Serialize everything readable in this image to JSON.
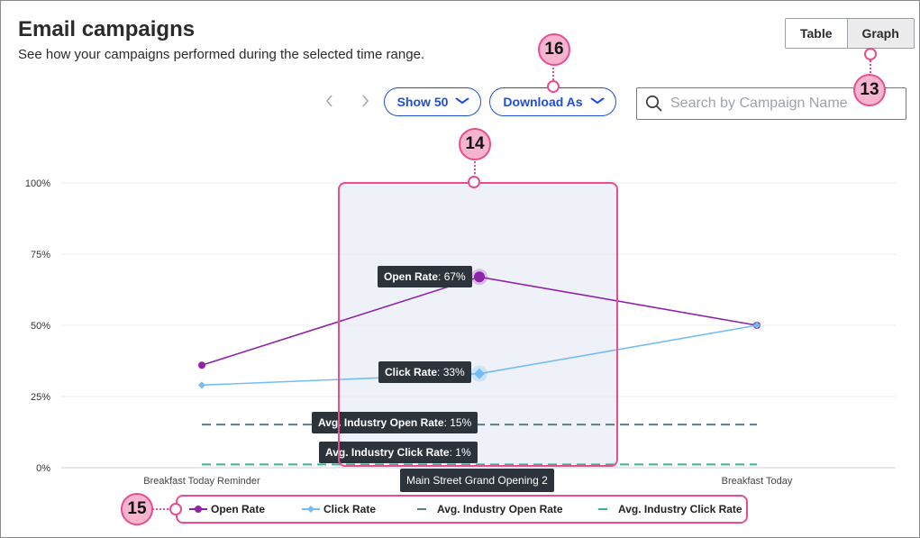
{
  "header": {
    "title": "Email campaigns",
    "subtitle": "See how your campaigns performed during the selected time range."
  },
  "view_toggle": {
    "table_label": "Table",
    "graph_label": "Graph",
    "selected": "Graph"
  },
  "toolbar": {
    "prev_icon": "chevron-left-icon",
    "next_icon": "chevron-right-icon",
    "show_label": "Show 50",
    "download_label": "Download As",
    "search_placeholder": "Search by Campaign Name",
    "search_value": ""
  },
  "chart_data": {
    "type": "line",
    "categories": [
      "Breakfast Today Reminder",
      "Main Street Grand Opening 2",
      "Breakfast Today"
    ],
    "yticks": [
      "100%",
      "75%",
      "50%",
      "25%",
      "0%"
    ],
    "ylim": [
      0,
      100
    ],
    "grid": true,
    "series": [
      {
        "name": "Open Rate",
        "values": [
          36,
          67,
          50
        ],
        "color": "#8e24aa",
        "marker": "circle"
      },
      {
        "name": "Click Rate",
        "values": [
          29,
          33,
          50
        ],
        "color": "#74bcf8",
        "marker": "diamond"
      }
    ],
    "reference_lines": [
      {
        "name": "Avg. Industry Open Rate",
        "value": 15,
        "color": "#5f7d86",
        "style": "dashed"
      },
      {
        "name": "Avg. Industry Click Rate",
        "value": 1,
        "color": "#2fb892",
        "style": "dashed"
      }
    ],
    "hovered_category": "Main Street Grand Opening 2",
    "tooltips": [
      {
        "label": "Open Rate",
        "value": "67%"
      },
      {
        "label": "Click Rate",
        "value": "33%"
      },
      {
        "label": "Avg. Industry Open Rate",
        "value": "15%"
      },
      {
        "label": "Avg. Industry Click Rate",
        "value": "1%"
      }
    ],
    "legend_position": "bottom"
  },
  "legend": {
    "items": [
      "Open Rate",
      "Click Rate",
      "Avg. Industry Open Rate",
      "Avg. Industry Click Rate"
    ]
  },
  "callouts": [
    {
      "number": "13"
    },
    {
      "number": "14"
    },
    {
      "number": "15"
    },
    {
      "number": "16"
    }
  ],
  "colors": {
    "accent": "#1d4ed8",
    "callout": "#e94d8f",
    "callout_fill": "#f6b5cf",
    "tooltip_bg": "#2d333b",
    "hover_band": "#eef1f8"
  }
}
